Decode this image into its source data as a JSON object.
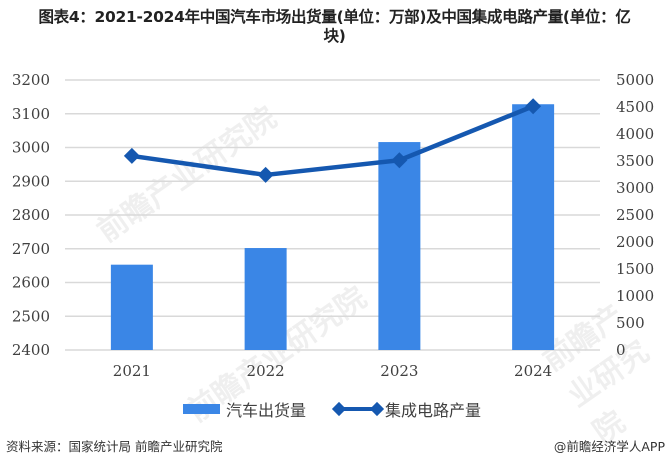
{
  "title": {
    "line1": "图表4：2021-2024年中国汽车市场出货量(单位：万部)及中国集成电路产量(单位：亿",
    "line2": "块)"
  },
  "colors": {
    "bar": "#3A86E6",
    "line": "#1558B0",
    "grid": "#D9D9D9",
    "axis_text": "#404040"
  },
  "chart_data": {
    "type": "bar+line",
    "title": "图表4：2021-2024年中国汽车市场出货量(单位：万部)及中国集成电路产量(单位：亿块)",
    "categories": [
      "2021",
      "2022",
      "2023",
      "2024"
    ],
    "series": [
      {
        "name": "汽车出货量",
        "type": "bar",
        "axis": "left",
        "values": [
          2652.8,
          2702.1,
          3016.1,
          3128.2
        ]
      },
      {
        "name": "集成电路产量",
        "type": "line",
        "axis": "right",
        "marker": "diamond",
        "values": [
          3594,
          3242,
          3514,
          4514
        ]
      }
    ],
    "left_axis": {
      "ylim": [
        2400,
        3200
      ],
      "ticks": [
        "2400",
        "2500",
        "2600",
        "2700",
        "2800",
        "2900",
        "3000",
        "3100",
        "3200"
      ]
    },
    "right_axis": {
      "ylim": [
        0,
        5000
      ],
      "ticks": [
        "0",
        "500",
        "1000",
        "1500",
        "2000",
        "2500",
        "3000",
        "3500",
        "4000",
        "4500",
        "5000"
      ]
    },
    "xlabel": "",
    "ylabel": "",
    "grid": true,
    "legend_position": "bottom"
  },
  "legend": {
    "bar_label": "汽车出货量",
    "line_label": "集成电路产量"
  },
  "footer": {
    "source": "资料来源：国家统计局 前瞻产业研究院",
    "credit": "@前瞻经济学人APP"
  },
  "watermark": {
    "text": "前瞻产业研究院"
  }
}
